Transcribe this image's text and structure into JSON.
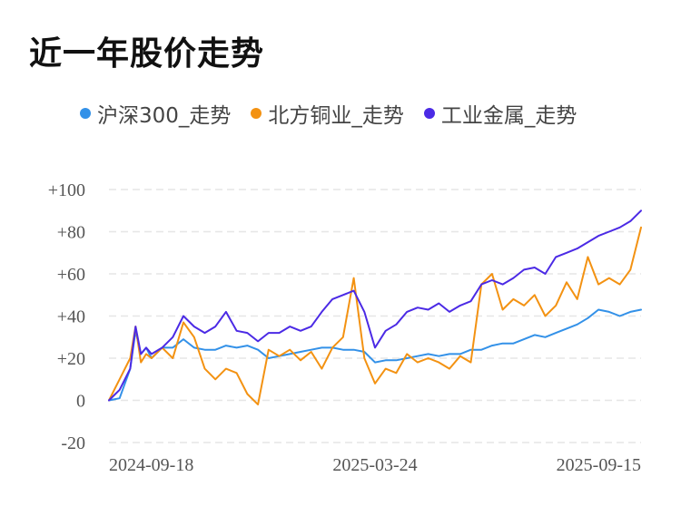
{
  "title": "近一年股价走势",
  "chart_data": {
    "type": "line",
    "title": "近一年股价走势",
    "xlabel": "",
    "ylabel": "",
    "x_ticks": [
      "2024-09-18",
      "2025-03-24",
      "2025-09-15"
    ],
    "x_tick_positions": [
      0,
      0.5,
      1
    ],
    "y_ticks": [
      "+100",
      "+80",
      "+60",
      "+40",
      "+20",
      "0",
      "-20"
    ],
    "y_tick_values": [
      100,
      80,
      60,
      40,
      20,
      0,
      -20
    ],
    "ylim": [
      -20,
      100
    ],
    "grid": true,
    "legend_position": "top",
    "x": [
      0,
      0.02,
      0.04,
      0.05,
      0.06,
      0.07,
      0.08,
      0.1,
      0.12,
      0.14,
      0.16,
      0.18,
      0.2,
      0.22,
      0.24,
      0.26,
      0.28,
      0.3,
      0.32,
      0.34,
      0.36,
      0.38,
      0.4,
      0.42,
      0.44,
      0.46,
      0.48,
      0.5,
      0.52,
      0.54,
      0.56,
      0.58,
      0.6,
      0.62,
      0.64,
      0.66,
      0.68,
      0.7,
      0.72,
      0.74,
      0.76,
      0.78,
      0.8,
      0.82,
      0.84,
      0.86,
      0.88,
      0.9,
      0.92,
      0.94,
      0.96,
      0.98,
      1
    ],
    "series": [
      {
        "name": "沪深300_走势",
        "color": "#3391e8",
        "values": [
          0,
          1,
          15,
          33,
          22,
          25,
          20,
          25,
          25,
          29,
          25,
          24,
          24,
          26,
          25,
          26,
          24,
          20,
          21,
          22,
          23,
          24,
          25,
          25,
          24,
          24,
          23,
          18,
          19,
          19,
          20,
          21,
          22,
          21,
          22,
          22,
          24,
          24,
          26,
          27,
          27,
          29,
          31,
          30,
          32,
          34,
          36,
          39,
          43,
          42,
          40,
          42,
          43
        ]
      },
      {
        "name": "北方铜业_走势",
        "color": "#f39212",
        "values": [
          0,
          10,
          20,
          35,
          18,
          22,
          20,
          25,
          20,
          37,
          30,
          15,
          10,
          15,
          13,
          3,
          -2,
          24,
          21,
          24,
          19,
          23,
          15,
          25,
          30,
          58,
          20,
          8,
          15,
          13,
          22,
          18,
          20,
          18,
          15,
          21,
          18,
          55,
          60,
          43,
          48,
          45,
          50,
          40,
          45,
          56,
          48,
          68,
          55,
          58,
          55,
          62,
          82
        ]
      },
      {
        "name": "工业金属_走势",
        "color": "#4b2ae5",
        "values": [
          0,
          5,
          15,
          35,
          22,
          25,
          22,
          25,
          30,
          40,
          35,
          32,
          35,
          42,
          33,
          32,
          28,
          32,
          32,
          35,
          33,
          35,
          42,
          48,
          50,
          52,
          42,
          25,
          33,
          36,
          42,
          44,
          43,
          46,
          42,
          45,
          47,
          55,
          57,
          55,
          58,
          62,
          63,
          60,
          68,
          70,
          72,
          75,
          78,
          80,
          82,
          85,
          90
        ]
      }
    ]
  }
}
